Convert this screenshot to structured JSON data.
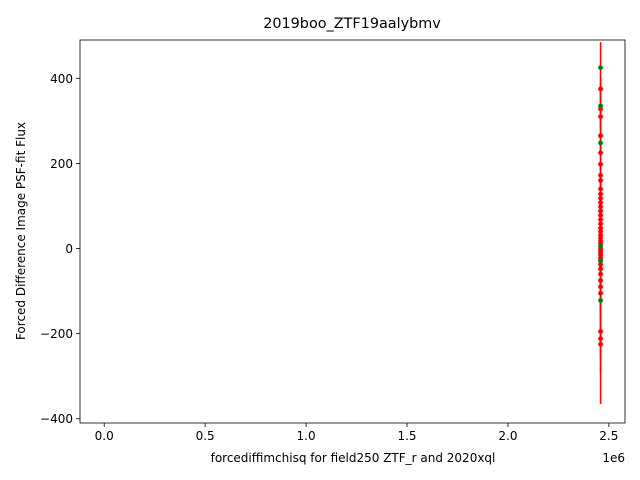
{
  "chart_data": {
    "type": "scatter",
    "title": "2019boo_ZTF19aalybmv",
    "xlabel": "forcediffimchisq for field250 ZTF_r and 2020xql",
    "ylabel": "Forced Difference Image PSF-fit Flux",
    "x_offset_label": "1e6",
    "xlim": [
      -120000,
      2580000
    ],
    "ylim": [
      -410,
      490
    ],
    "x_ticks": [
      0,
      500000,
      1000000,
      1500000,
      2000000,
      2500000
    ],
    "x_tick_labels": [
      "0.0",
      "0.5",
      "1.0",
      "1.5",
      "2.0",
      "2.5"
    ],
    "y_ticks": [
      -400,
      -200,
      0,
      200,
      400
    ],
    "y_tick_labels": [
      "−400",
      "−200",
      "0",
      "200",
      "400"
    ],
    "errorbar_color": "#ff0000",
    "series": [
      {
        "color": "#ff0000",
        "x": 2458900,
        "points": [
          {
            "y": 375,
            "err": 30
          },
          {
            "y": 328,
            "err": 45
          },
          {
            "y": 310,
            "err": 35
          },
          {
            "y": 265,
            "err": 40
          },
          {
            "y": 225,
            "err": 40
          },
          {
            "y": 198,
            "err": 35
          },
          {
            "y": 172,
            "err": 30
          },
          {
            "y": 160,
            "err": 30
          },
          {
            "y": 140,
            "err": 30
          },
          {
            "y": 128,
            "err": 30
          },
          {
            "y": 118,
            "err": 30
          },
          {
            "y": 108,
            "err": 30
          },
          {
            "y": 98,
            "err": 30
          },
          {
            "y": 88,
            "err": 30
          },
          {
            "y": 78,
            "err": 30
          },
          {
            "y": 68,
            "err": 30
          },
          {
            "y": 58,
            "err": 30
          },
          {
            "y": 48,
            "err": 30
          },
          {
            "y": 40,
            "err": 30
          },
          {
            "y": 32,
            "err": 30
          },
          {
            "y": 25,
            "err": 30
          },
          {
            "y": 18,
            "err": 30
          },
          {
            "y": 12,
            "err": 30
          },
          {
            "y": 6,
            "err": 30
          },
          {
            "y": 0,
            "err": 30
          },
          {
            "y": -5,
            "err": 30
          },
          {
            "y": -10,
            "err": 30
          },
          {
            "y": -15,
            "err": 30
          },
          {
            "y": -22,
            "err": 30
          },
          {
            "y": -30,
            "err": 30
          },
          {
            "y": -38,
            "err": 30
          },
          {
            "y": -48,
            "err": 30
          },
          {
            "y": -60,
            "err": 30
          },
          {
            "y": -75,
            "err": 30
          },
          {
            "y": -90,
            "err": 35
          },
          {
            "y": -105,
            "err": 35
          },
          {
            "y": -195,
            "err": 60
          },
          {
            "y": -212,
            "err": 80
          },
          {
            "y": -225,
            "err": 140
          }
        ]
      },
      {
        "color": "#008000",
        "x": 2458900,
        "points": [
          {
            "y": 425,
            "err": 60
          },
          {
            "y": 335,
            "err": 40
          },
          {
            "y": 248,
            "err": 30
          },
          {
            "y": 5,
            "err": 30
          },
          {
            "y": -28,
            "err": 30
          },
          {
            "y": -122,
            "err": 35
          }
        ]
      }
    ]
  }
}
